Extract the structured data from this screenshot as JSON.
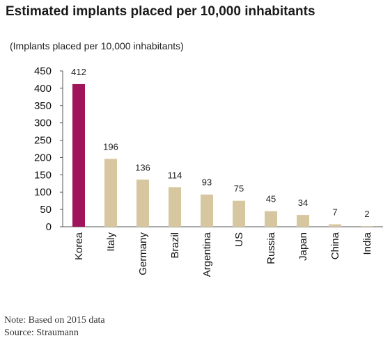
{
  "title": "Estimated implants placed per 10,000 inhabitants",
  "chart_data": {
    "type": "bar",
    "title": "Estimated implants placed per 10,000 inhabitants",
    "ylabel": "(Implants placed per 10,000 inhabitants)",
    "xlabel": "",
    "categories": [
      "Korea",
      "Italy",
      "Germany",
      "Brazil",
      "Argentina",
      "US",
      "Russia",
      "Japan",
      "China",
      "India"
    ],
    "values": [
      412,
      196,
      136,
      114,
      93,
      75,
      45,
      34,
      7,
      2
    ],
    "data_labels": [
      "412",
      "196",
      "136",
      "114",
      "93",
      "75",
      "45",
      "34",
      "7",
      "2"
    ],
    "ylim": [
      0,
      450
    ],
    "yticks": [
      0,
      50,
      100,
      150,
      200,
      250,
      300,
      350,
      400,
      450
    ],
    "ytick_labels": [
      "0",
      "50",
      "100",
      "150",
      "200",
      "250",
      "300",
      "350",
      "400",
      "450"
    ],
    "grid": false,
    "legend": "none",
    "colors": {
      "highlight": "#a0155a",
      "default": "#d6c7a0"
    },
    "highlight_index": 0
  },
  "footer": {
    "note": "Note: Based on 2015 data",
    "source": "Source: Straumann"
  }
}
